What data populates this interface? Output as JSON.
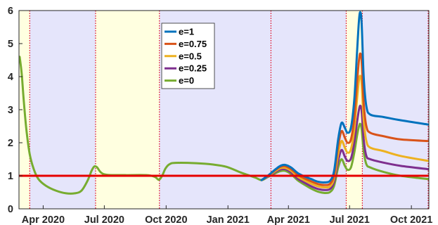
{
  "chart_data": {
    "type": "line",
    "title": "",
    "xlabel": "",
    "ylabel": "",
    "x_range": [
      "2020-02-25",
      "2021-10-27"
    ],
    "ylim": [
      0,
      6
    ],
    "y_ticks": [
      0,
      1,
      2,
      3,
      4,
      5,
      6
    ],
    "x_ticks": [
      {
        "label": "Apr 2020",
        "date": "2020-04-01"
      },
      {
        "label": "Jul 2020",
        "date": "2020-07-01"
      },
      {
        "label": "Oct 2020",
        "date": "2020-10-01"
      },
      {
        "label": "Jan 2021",
        "date": "2021-01-01"
      },
      {
        "label": "Apr 2021",
        "date": "2021-04-01"
      },
      {
        "label": "Jul 2021",
        "date": "2021-07-01"
      },
      {
        "label": "Oct 2021",
        "date": "2021-10-01"
      }
    ],
    "grid": false,
    "legend_position": "top-center",
    "reference_line": {
      "y": 1,
      "color": "#e60000"
    },
    "background_bands": [
      {
        "start": "2020-02-25",
        "end": "2020-03-12",
        "color": "#ffffe0"
      },
      {
        "start": "2020-03-12",
        "end": "2020-06-18",
        "color": "#e5e5fb"
      },
      {
        "start": "2020-06-18",
        "end": "2020-09-21",
        "color": "#ffffe0"
      },
      {
        "start": "2020-09-21",
        "end": "2021-03-06",
        "color": "#e5e5fb"
      },
      {
        "start": "2021-03-06",
        "end": "2021-06-26",
        "color": "#e5e5fb"
      },
      {
        "start": "2021-06-26",
        "end": "2021-07-20",
        "color": "#ffffe0"
      },
      {
        "start": "2021-07-20",
        "end": "2021-10-27",
        "color": "#e5e5fb"
      }
    ],
    "event_lines": [
      "2020-03-12",
      "2020-06-18",
      "2020-09-21",
      "2021-03-06",
      "2021-06-26",
      "2021-07-20",
      "2021-10-26"
    ],
    "series": [
      {
        "name": "e=1",
        "color": "#0072bd",
        "points": [
          [
            "2021-02-20",
            0.87
          ],
          [
            "2021-02-28",
            0.98
          ],
          [
            "2021-03-06",
            1.08
          ],
          [
            "2021-03-13",
            1.2
          ],
          [
            "2021-03-20",
            1.3
          ],
          [
            "2021-03-27",
            1.33
          ],
          [
            "2021-04-05",
            1.25
          ],
          [
            "2021-04-15",
            1.08
          ],
          [
            "2021-04-25",
            0.98
          ],
          [
            "2021-05-05",
            0.9
          ],
          [
            "2021-05-15",
            0.82
          ],
          [
            "2021-05-25",
            0.8
          ],
          [
            "2021-06-02",
            0.85
          ],
          [
            "2021-06-08",
            1.15
          ],
          [
            "2021-06-14",
            2.1
          ],
          [
            "2021-06-19",
            2.6
          ],
          [
            "2021-06-24",
            2.45
          ],
          [
            "2021-06-28",
            2.3
          ],
          [
            "2021-07-03",
            2.45
          ],
          [
            "2021-07-08",
            3.3
          ],
          [
            "2021-07-12",
            4.7
          ],
          [
            "2021-07-15",
            5.7
          ],
          [
            "2021-07-17",
            5.95
          ],
          [
            "2021-07-19",
            5.6
          ],
          [
            "2021-07-22",
            4.0
          ],
          [
            "2021-07-26",
            3.1
          ],
          [
            "2021-08-01",
            2.85
          ],
          [
            "2021-08-20",
            2.78
          ],
          [
            "2021-09-15",
            2.68
          ],
          [
            "2021-10-26",
            2.55
          ]
        ]
      },
      {
        "name": "e=0.75",
        "color": "#d95319",
        "points": [
          [
            "2021-02-20",
            0.87
          ],
          [
            "2021-02-28",
            0.98
          ],
          [
            "2021-03-06",
            1.07
          ],
          [
            "2021-03-13",
            1.18
          ],
          [
            "2021-03-20",
            1.27
          ],
          [
            "2021-03-27",
            1.29
          ],
          [
            "2021-04-05",
            1.2
          ],
          [
            "2021-04-15",
            1.03
          ],
          [
            "2021-04-25",
            0.92
          ],
          [
            "2021-05-05",
            0.83
          ],
          [
            "2021-05-15",
            0.75
          ],
          [
            "2021-05-25",
            0.72
          ],
          [
            "2021-06-02",
            0.76
          ],
          [
            "2021-06-08",
            1.03
          ],
          [
            "2021-06-14",
            1.9
          ],
          [
            "2021-06-19",
            2.35
          ],
          [
            "2021-06-24",
            2.15
          ],
          [
            "2021-06-28",
            2.0
          ],
          [
            "2021-07-03",
            2.1
          ],
          [
            "2021-07-08",
            2.75
          ],
          [
            "2021-07-12",
            3.8
          ],
          [
            "2021-07-15",
            4.5
          ],
          [
            "2021-07-17",
            4.7
          ],
          [
            "2021-07-19",
            4.45
          ],
          [
            "2021-07-22",
            3.2
          ],
          [
            "2021-07-26",
            2.5
          ],
          [
            "2021-08-01",
            2.3
          ],
          [
            "2021-08-20",
            2.2
          ],
          [
            "2021-09-15",
            2.1
          ],
          [
            "2021-10-26",
            2.05
          ]
        ]
      },
      {
        "name": "e=0.5",
        "color": "#edb120",
        "points": [
          [
            "2021-02-20",
            0.87
          ],
          [
            "2021-02-28",
            0.97
          ],
          [
            "2021-03-06",
            1.05
          ],
          [
            "2021-03-13",
            1.15
          ],
          [
            "2021-03-20",
            1.23
          ],
          [
            "2021-03-27",
            1.24
          ],
          [
            "2021-04-05",
            1.15
          ],
          [
            "2021-04-15",
            0.97
          ],
          [
            "2021-04-25",
            0.86
          ],
          [
            "2021-05-05",
            0.76
          ],
          [
            "2021-05-15",
            0.68
          ],
          [
            "2021-05-25",
            0.65
          ],
          [
            "2021-06-02",
            0.68
          ],
          [
            "2021-06-08",
            0.93
          ],
          [
            "2021-06-14",
            1.65
          ],
          [
            "2021-06-19",
            2.05
          ],
          [
            "2021-06-24",
            1.85
          ],
          [
            "2021-06-28",
            1.7
          ],
          [
            "2021-07-03",
            1.8
          ],
          [
            "2021-07-08",
            2.4
          ],
          [
            "2021-07-12",
            3.3
          ],
          [
            "2021-07-15",
            3.9
          ],
          [
            "2021-07-17",
            4.02
          ],
          [
            "2021-07-19",
            3.8
          ],
          [
            "2021-07-22",
            2.7
          ],
          [
            "2021-07-26",
            2.05
          ],
          [
            "2021-08-01",
            1.85
          ],
          [
            "2021-08-20",
            1.75
          ],
          [
            "2021-09-15",
            1.6
          ],
          [
            "2021-10-26",
            1.45
          ]
        ]
      },
      {
        "name": "e=0.25",
        "color": "#7e2f8e",
        "points": [
          [
            "2021-02-20",
            0.87
          ],
          [
            "2021-02-28",
            0.96
          ],
          [
            "2021-03-06",
            1.03
          ],
          [
            "2021-03-13",
            1.12
          ],
          [
            "2021-03-20",
            1.19
          ],
          [
            "2021-03-27",
            1.2
          ],
          [
            "2021-04-05",
            1.1
          ],
          [
            "2021-04-15",
            0.91
          ],
          [
            "2021-04-25",
            0.79
          ],
          [
            "2021-05-05",
            0.68
          ],
          [
            "2021-05-15",
            0.6
          ],
          [
            "2021-05-25",
            0.57
          ],
          [
            "2021-06-02",
            0.6
          ],
          [
            "2021-06-08",
            0.82
          ],
          [
            "2021-06-14",
            1.45
          ],
          [
            "2021-06-19",
            1.78
          ],
          [
            "2021-06-24",
            1.58
          ],
          [
            "2021-06-28",
            1.45
          ],
          [
            "2021-07-03",
            1.52
          ],
          [
            "2021-07-08",
            2.0
          ],
          [
            "2021-07-12",
            2.6
          ],
          [
            "2021-07-15",
            3.0
          ],
          [
            "2021-07-17",
            3.12
          ],
          [
            "2021-07-19",
            2.95
          ],
          [
            "2021-07-22",
            2.1
          ],
          [
            "2021-07-26",
            1.6
          ],
          [
            "2021-08-01",
            1.5
          ],
          [
            "2021-08-20",
            1.4
          ],
          [
            "2021-09-15",
            1.3
          ],
          [
            "2021-10-26",
            1.2
          ]
        ]
      },
      {
        "name": "e=0",
        "color": "#77ac30",
        "points": [
          [
            "2020-02-26",
            4.6
          ],
          [
            "2020-02-29",
            4.1
          ],
          [
            "2020-03-03",
            3.3
          ],
          [
            "2020-03-07",
            2.4
          ],
          [
            "2020-03-12",
            1.65
          ],
          [
            "2020-03-18",
            1.2
          ],
          [
            "2020-03-25",
            0.9
          ],
          [
            "2020-04-05",
            0.7
          ],
          [
            "2020-04-20",
            0.55
          ],
          [
            "2020-05-05",
            0.47
          ],
          [
            "2020-05-18",
            0.47
          ],
          [
            "2020-05-28",
            0.55
          ],
          [
            "2020-06-06",
            0.85
          ],
          [
            "2020-06-12",
            1.15
          ],
          [
            "2020-06-16",
            1.28
          ],
          [
            "2020-06-20",
            1.26
          ],
          [
            "2020-06-26",
            1.1
          ],
          [
            "2020-07-05",
            1.03
          ],
          [
            "2020-08-01",
            1.02
          ],
          [
            "2020-09-01",
            1.02
          ],
          [
            "2020-09-14",
            0.97
          ],
          [
            "2020-09-20",
            0.88
          ],
          [
            "2020-09-25",
            1.0
          ],
          [
            "2020-09-30",
            1.22
          ],
          [
            "2020-10-06",
            1.35
          ],
          [
            "2020-10-15",
            1.39
          ],
          [
            "2020-11-15",
            1.38
          ],
          [
            "2020-12-10",
            1.34
          ],
          [
            "2020-12-30",
            1.27
          ],
          [
            "2021-01-20",
            1.1
          ],
          [
            "2021-02-10",
            0.95
          ],
          [
            "2021-02-20",
            0.87
          ],
          [
            "2021-02-28",
            0.95
          ],
          [
            "2021-03-06",
            1.01
          ],
          [
            "2021-03-13",
            1.08
          ],
          [
            "2021-03-20",
            1.14
          ],
          [
            "2021-03-27",
            1.15
          ],
          [
            "2021-04-05",
            1.05
          ],
          [
            "2021-04-15",
            0.86
          ],
          [
            "2021-04-25",
            0.73
          ],
          [
            "2021-05-05",
            0.61
          ],
          [
            "2021-05-15",
            0.52
          ],
          [
            "2021-05-25",
            0.48
          ],
          [
            "2021-06-02",
            0.51
          ],
          [
            "2021-06-08",
            0.7
          ],
          [
            "2021-06-14",
            1.25
          ],
          [
            "2021-06-19",
            1.5
          ],
          [
            "2021-06-24",
            1.3
          ],
          [
            "2021-06-28",
            1.18
          ],
          [
            "2021-07-03",
            1.25
          ],
          [
            "2021-07-08",
            1.7
          ],
          [
            "2021-07-12",
            2.2
          ],
          [
            "2021-07-15",
            2.5
          ],
          [
            "2021-07-17",
            2.57
          ],
          [
            "2021-07-19",
            2.4
          ],
          [
            "2021-07-22",
            1.75
          ],
          [
            "2021-07-26",
            1.35
          ],
          [
            "2021-08-01",
            1.25
          ],
          [
            "2021-08-20",
            1.12
          ],
          [
            "2021-09-15",
            1.0
          ],
          [
            "2021-10-26",
            0.9
          ]
        ]
      }
    ]
  }
}
